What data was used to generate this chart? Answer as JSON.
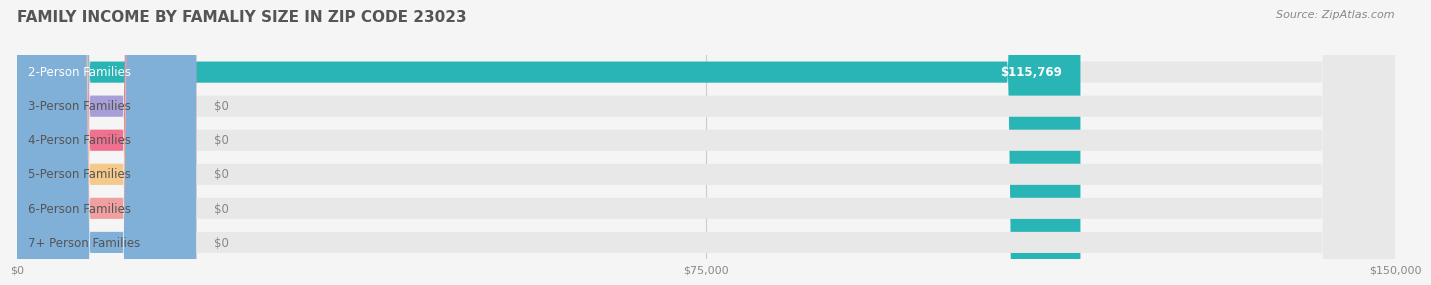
{
  "title": "FAMILY INCOME BY FAMALIY SIZE IN ZIP CODE 23023",
  "source": "Source: ZipAtlas.com",
  "categories": [
    "2-Person Families",
    "3-Person Families",
    "4-Person Families",
    "5-Person Families",
    "6-Person Families",
    "7+ Person Families"
  ],
  "values": [
    115769,
    0,
    0,
    0,
    0,
    0
  ],
  "bar_colors": [
    "#29b5b5",
    "#a89fd8",
    "#f07090",
    "#f5c98a",
    "#f0a0a0",
    "#80b0d8"
  ],
  "label_colors": [
    "#29b5b5",
    "#a89fd8",
    "#f07090",
    "#f5c98a",
    "#f0a0a0",
    "#80b0d8"
  ],
  "value_labels": [
    "$115,769",
    "$0",
    "$0",
    "$0",
    "$0",
    "$0"
  ],
  "xlim": [
    0,
    150000
  ],
  "xticks": [
    0,
    75000,
    150000
  ],
  "xticklabels": [
    "$0",
    "$75,000",
    "$150,000"
  ],
  "background_color": "#f5f5f5",
  "bar_background_color": "#e8e8e8",
  "title_fontsize": 11,
  "source_fontsize": 8,
  "label_fontsize": 8.5,
  "value_fontsize": 8.5
}
